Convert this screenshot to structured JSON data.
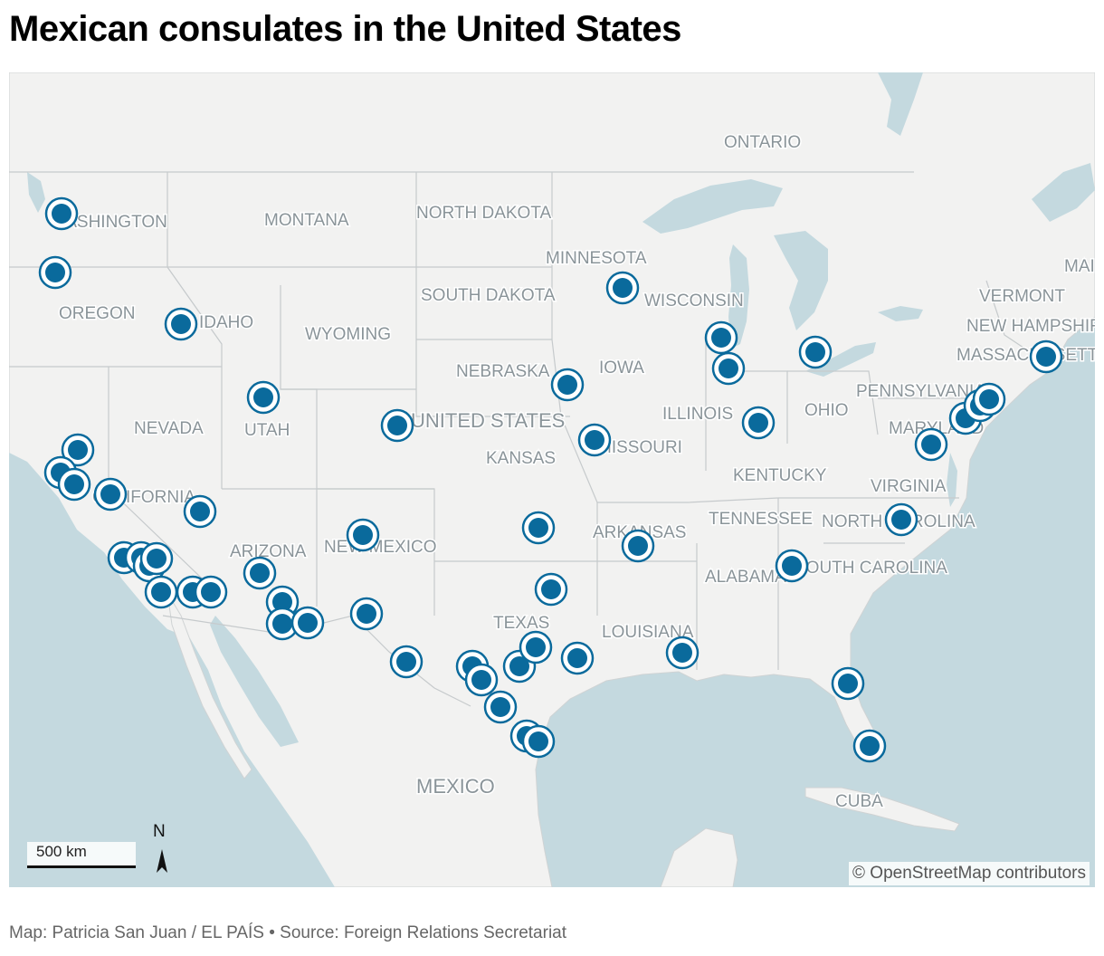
{
  "title": "Mexican consulates in the United States",
  "map": {
    "labels": {
      "ontario": "ONTARIO",
      "washington": "WASHINGTON",
      "montana": "MONTANA",
      "north_dakota": "NORTH DAKOTA",
      "minnesota": "MINNESOTA",
      "maine": "MAI",
      "oregon": "OREGON",
      "idaho": "IDAHO",
      "south_dakota": "SOUTH DAKOTA",
      "wisconsin": "WISCONSIN",
      "vermont": "VERMONT",
      "new_hampshire": "NEW HAMPSHIR",
      "massachusetts": "MASSACHUSETTS",
      "wyoming": "WYOMING",
      "nebraska": "NEBRASKA",
      "iowa": "IOWA",
      "pennsylvania": "PENNSYLVANIA",
      "utah": "UTAH",
      "nevada": "NEVADA",
      "united_states": "UNITED STATES",
      "illinois": "ILLINOIS",
      "ohio": "OHIO",
      "maryland": "MARYLAND",
      "kansas": "KANSAS",
      "missouri": "MISSOURI",
      "kentucky": "KENTUCKY",
      "virginia": "VIRGINIA",
      "california": "CALIFORNIA",
      "tennessee": "TENNESSEE",
      "north_carolina": "NORTH CAROLINA",
      "arkansas": "ARKANSAS",
      "arizona": "ARIZONA",
      "new_mexico": "NEW MEXICO",
      "alabama": "ALABAMA",
      "south_carolina": "SOUTH CAROLINA",
      "texas": "TEXAS",
      "louisiana": "LOUISIANA",
      "mexico": "MEXICO",
      "cuba": "CUBA"
    },
    "marker_color": "#0a6a9c",
    "marker_count": 53,
    "scale_label": "500 km",
    "north_label": "N",
    "attribution": "© OpenStreetMap contributors"
  },
  "footer": "Map: Patricia San Juan / EL PAÍS • Source: Foreign Relations Secretariat"
}
